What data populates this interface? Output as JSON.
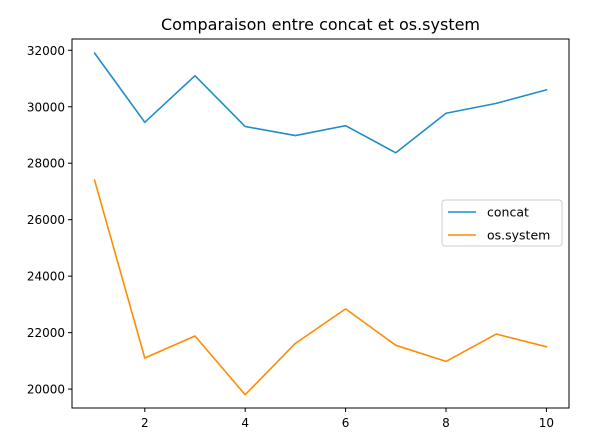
{
  "chart_data": {
    "type": "line",
    "title": "Comparaison entre concat et os.system",
    "xlabel": "",
    "ylabel": "",
    "x": [
      1,
      2,
      3,
      4,
      5,
      6,
      7,
      8,
      9,
      10
    ],
    "series": [
      {
        "name": "concat",
        "color": "#1f8dc7",
        "values": [
          31900,
          29450,
          31100,
          29300,
          28980,
          29330,
          28370,
          29770,
          30120,
          30600
        ]
      },
      {
        "name": "os.system",
        "color": "#ff8c00",
        "values": [
          27400,
          21100,
          21880,
          19800,
          21620,
          22840,
          21550,
          20980,
          21950,
          21500
        ]
      }
    ],
    "xticks": [
      2,
      4,
      6,
      8,
      10
    ],
    "yticks": [
      20000,
      22000,
      24000,
      26000,
      28000,
      30000,
      32000
    ],
    "xlim": [
      0.55,
      10.45
    ],
    "ylim": [
      19330,
      32400
    ],
    "grid": false,
    "legend_position": "center-right"
  }
}
